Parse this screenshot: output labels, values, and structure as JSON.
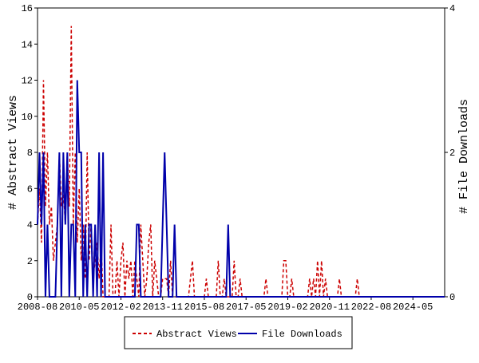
{
  "chart_data": {
    "type": "line",
    "y_label": "# Abstract Views",
    "y2_label": "# File Downloads",
    "categories": [
      "2008-08",
      null,
      null,
      null,
      null,
      null,
      null,
      null,
      null,
      null,
      null,
      null,
      null,
      null,
      null,
      null,
      null,
      null,
      null,
      null,
      null,
      "2010-05",
      null,
      null,
      null,
      null,
      null,
      null,
      null,
      null,
      null,
      null,
      null,
      null,
      null,
      null,
      null,
      null,
      null,
      null,
      null,
      null,
      "2012-02",
      null,
      null,
      null,
      null,
      null,
      null,
      null,
      null,
      null,
      null,
      null,
      null,
      null,
      null,
      null,
      null,
      null,
      null,
      null,
      null,
      "2013-11",
      null,
      null,
      null,
      null,
      null,
      null,
      null,
      null,
      null,
      null,
      null,
      null,
      null,
      null,
      null,
      null,
      null,
      null,
      null,
      null,
      "2015-08",
      null,
      null,
      null,
      null,
      null,
      null,
      null,
      null,
      null,
      null,
      null,
      null,
      null,
      null,
      null,
      null,
      null,
      null,
      null,
      null,
      "2017-05",
      null,
      null,
      null,
      null,
      null,
      null,
      null,
      null,
      null,
      null,
      null,
      null,
      null,
      null,
      null,
      null,
      null,
      null,
      null,
      null,
      "2019-02",
      null,
      null,
      null,
      null,
      null,
      null,
      null,
      null,
      null,
      null,
      null,
      null,
      null,
      null,
      null,
      null,
      null,
      null,
      null,
      null,
      "2020-11",
      null,
      null,
      null,
      null,
      null,
      null,
      null,
      null,
      null,
      null,
      null,
      null,
      null,
      null,
      null,
      null,
      null,
      null,
      null,
      null,
      "2022-08",
      null,
      null,
      null,
      null,
      null,
      null,
      null,
      null,
      null,
      null,
      null,
      null,
      null,
      null,
      null,
      null,
      null,
      null,
      null,
      null,
      "2024-05",
      null,
      null,
      null,
      null,
      null,
      null,
      null,
      null,
      null,
      null,
      null,
      null,
      null,
      null,
      null,
      null
    ],
    "series": [
      {
        "name": "Abstract Views",
        "color": "#cc0000",
        "dash": true,
        "values": [
          4,
          6,
          3,
          12,
          5,
          8,
          4,
          5,
          2,
          3,
          4,
          8,
          5,
          6,
          4,
          8,
          5,
          15,
          4,
          8,
          3,
          6,
          2,
          4,
          1,
          8,
          2,
          4,
          1,
          2,
          3,
          1,
          3,
          0,
          0,
          0,
          0,
          4,
          0,
          0,
          2,
          0,
          2,
          3,
          0,
          2,
          1,
          2,
          0,
          2,
          1,
          0,
          4,
          2,
          0,
          1,
          3,
          4,
          0,
          2,
          1,
          0,
          0,
          1,
          1,
          1,
          0,
          2,
          0,
          0,
          0,
          0,
          0,
          0,
          0,
          0,
          0,
          1,
          2,
          0,
          0,
          0,
          0,
          0,
          0,
          1,
          0,
          0,
          0,
          0,
          0,
          2,
          0,
          0,
          1,
          0,
          0,
          0,
          0,
          2,
          0,
          0,
          1,
          0,
          0,
          0,
          0,
          0,
          0,
          0,
          0,
          0,
          0,
          0,
          0,
          1,
          0,
          0,
          0,
          0,
          0,
          0,
          0,
          0,
          2,
          2,
          0,
          0,
          1,
          0,
          0,
          0,
          0,
          0,
          0,
          0,
          0,
          1,
          0,
          1,
          0,
          2,
          0,
          2,
          0,
          1,
          0,
          0,
          0,
          0,
          0,
          0,
          1,
          0,
          0,
          0,
          0,
          0,
          0,
          0,
          0,
          1,
          0,
          0,
          0,
          0,
          0,
          0,
          0,
          0,
          0,
          0,
          0,
          0,
          0,
          0,
          0,
          0,
          0,
          0,
          0,
          0,
          0,
          0,
          0,
          0,
          0,
          0,
          0,
          0,
          0,
          0,
          0,
          0,
          0,
          0,
          0,
          0,
          0,
          0,
          0,
          0,
          0,
          0,
          0,
          0
        ]
      },
      {
        "name": "File Downloads",
        "color": "#0000aa",
        "dash": false,
        "axis": "y2",
        "values": [
          1,
          2,
          1,
          2,
          0,
          1,
          0,
          0,
          0,
          0,
          1,
          2,
          0,
          2,
          1,
          2,
          0,
          1,
          1,
          0,
          3,
          2,
          2,
          0,
          1,
          0,
          1,
          1,
          0,
          1,
          0,
          2,
          0,
          2,
          0,
          0,
          0,
          0,
          0,
          0,
          0,
          0,
          0,
          0,
          0,
          0,
          0,
          0,
          0,
          0,
          1,
          1,
          0,
          0,
          0,
          0,
          0,
          0,
          0,
          0,
          0,
          0,
          0,
          1,
          2,
          1,
          0,
          0,
          0,
          1,
          0,
          0,
          0,
          0,
          0,
          0,
          0,
          0,
          0,
          0,
          0,
          0,
          0,
          0,
          0,
          0,
          0,
          0,
          0,
          0,
          0,
          0,
          0,
          0,
          0,
          0,
          1,
          0,
          0,
          0,
          0,
          0,
          0,
          0,
          0,
          0,
          0,
          0,
          0,
          0,
          0,
          0,
          0,
          0,
          0,
          0,
          0,
          0,
          0,
          0,
          0,
          0,
          0,
          0,
          0,
          0,
          0,
          0,
          0,
          0,
          0,
          0,
          0,
          0,
          0,
          0,
          0,
          0,
          0,
          0,
          0,
          0,
          0,
          0,
          0,
          0,
          0,
          0,
          0,
          0,
          0,
          0,
          0,
          0,
          0,
          0,
          0,
          0,
          0,
          0,
          0,
          0,
          0,
          0,
          0,
          0,
          0,
          0,
          0,
          0,
          0,
          0,
          0,
          0,
          0,
          0,
          0,
          0,
          0,
          0,
          0,
          0,
          0,
          0,
          0,
          0,
          0,
          0,
          0,
          0,
          0,
          0,
          0,
          0,
          0,
          0,
          0,
          0,
          0,
          0,
          0,
          0,
          0,
          0,
          0,
          0
        ]
      }
    ],
    "ylim": [
      0,
      16
    ],
    "yticks": [
      0,
      2,
      4,
      6,
      8,
      10,
      12,
      14,
      16
    ],
    "y2lim": [
      0,
      4
    ],
    "y2ticks": [
      0,
      2,
      4
    ],
    "legend": "bottom"
  }
}
